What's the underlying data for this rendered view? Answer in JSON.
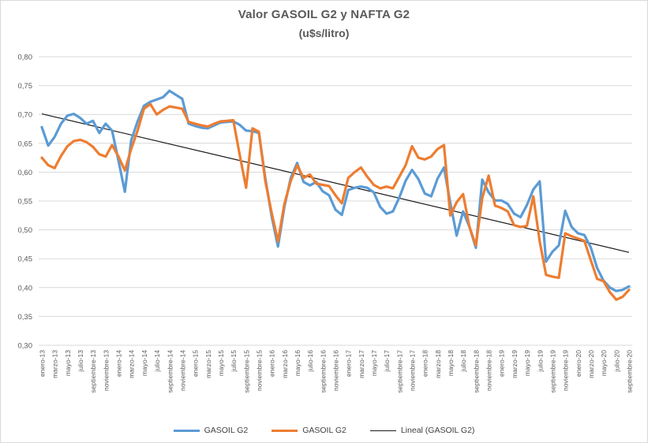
{
  "chart": {
    "title": "Valor GASOIL G2 y NAFTA G2",
    "subtitle": "(u$s/litro)"
  },
  "chart_data": {
    "type": "line",
    "title": "Valor GASOIL G2 y NAFTA G2",
    "subtitle": "(u$s/litro)",
    "x_resolution": "monthly",
    "x_first": "enero-13",
    "x_last": "septiembre-20",
    "points_per_series": 93,
    "ylim": [
      0.3,
      0.8
    ],
    "ytick_step": 0.05,
    "grid": "horizontal",
    "legend_position": "bottom",
    "y_tick_labels": [
      "0,80",
      "0,75",
      "0,70",
      "0,65",
      "0,60",
      "0,55",
      "0,50",
      "0,45",
      "0,40",
      "0,35",
      "0,30"
    ],
    "x_tick_labels": [
      "enero-13",
      "marzo-13",
      "mayo-13",
      "julio-13",
      "septiembre-13",
      "noviembre-13",
      "enero-14",
      "marzo-14",
      "mayo-14",
      "julio-14",
      "septiembre-14",
      "noviembre-14",
      "enero-15",
      "marzo-15",
      "mayo-15",
      "julio-15",
      "septiembre-15",
      "noviembre-15",
      "enero-16",
      "marzo-16",
      "mayo-16",
      "julio-16",
      "septiembre-16",
      "noviembre-16",
      "enero-17",
      "marzo-17",
      "mayo-17",
      "julio-17",
      "septiembre-17",
      "noviembre-17",
      "enero-18",
      "marzo-18",
      "mayo-18",
      "julio-18",
      "septiembre-18",
      "noviembre-18",
      "enero-19",
      "marzo-19",
      "mayo-19",
      "julio-19",
      "septiembre-19",
      "noviembre-19",
      "enero-20",
      "marzo-20",
      "mayo-20",
      "julio-20",
      "septiembre-20"
    ],
    "series": [
      {
        "name": "GASOIL G2",
        "color": "#5B9BD5",
        "values": [
          0.678,
          0.646,
          0.661,
          0.684,
          0.698,
          0.701,
          0.694,
          0.684,
          0.689,
          0.668,
          0.684,
          0.672,
          0.62,
          0.566,
          0.655,
          0.688,
          0.715,
          0.722,
          0.726,
          0.73,
          0.741,
          0.734,
          0.727,
          0.684,
          0.68,
          0.677,
          0.676,
          0.681,
          0.686,
          0.687,
          0.688,
          0.682,
          0.672,
          0.671,
          0.668,
          0.59,
          0.524,
          0.471,
          0.54,
          0.59,
          0.616,
          0.583,
          0.577,
          0.583,
          0.567,
          0.56,
          0.535,
          0.526,
          0.569,
          0.573,
          0.575,
          0.573,
          0.565,
          0.54,
          0.528,
          0.532,
          0.556,
          0.585,
          0.604,
          0.588,
          0.563,
          0.558,
          0.589,
          0.608,
          0.547,
          0.49,
          0.532,
          0.505,
          0.469,
          0.587,
          0.565,
          0.551,
          0.551,
          0.545,
          0.528,
          0.522,
          0.543,
          0.57,
          0.584,
          0.445,
          0.462,
          0.473,
          0.533,
          0.505,
          0.494,
          0.491,
          0.47,
          0.434,
          0.412,
          0.4,
          0.394,
          0.396,
          0.402
        ]
      },
      {
        "name": "GASOIL G2",
        "color": "#ED7D31",
        "values": [
          0.625,
          0.612,
          0.607,
          0.628,
          0.645,
          0.654,
          0.656,
          0.652,
          0.644,
          0.631,
          0.627,
          0.647,
          0.627,
          0.603,
          0.64,
          0.672,
          0.71,
          0.718,
          0.7,
          0.708,
          0.714,
          0.712,
          0.71,
          0.687,
          0.684,
          0.681,
          0.679,
          0.684,
          0.688,
          0.689,
          0.69,
          0.63,
          0.573,
          0.676,
          0.67,
          0.585,
          0.53,
          0.48,
          0.545,
          0.585,
          0.612,
          0.59,
          0.596,
          0.58,
          0.578,
          0.576,
          0.56,
          0.546,
          0.59,
          0.6,
          0.608,
          0.592,
          0.578,
          0.572,
          0.575,
          0.572,
          0.592,
          0.612,
          0.645,
          0.625,
          0.622,
          0.627,
          0.64,
          0.647,
          0.525,
          0.548,
          0.562,
          0.505,
          0.473,
          0.555,
          0.594,
          0.542,
          0.538,
          0.532,
          0.508,
          0.505,
          0.507,
          0.558,
          0.48,
          0.422,
          0.419,
          0.417,
          0.494,
          0.489,
          0.485,
          0.481,
          0.448,
          0.415,
          0.411,
          0.392,
          0.379,
          0.384,
          0.396
        ]
      },
      {
        "name": "Lineal (GASOIL G2)",
        "type": "linear_trend",
        "color": "#1a1a1a",
        "start_value": 0.701,
        "end_value": 0.461
      }
    ]
  },
  "legend": {
    "items": [
      {
        "label": "GASOIL G2",
        "color": "#5B9BD5",
        "style": "line-thick"
      },
      {
        "label": "GASOIL G2",
        "color": "#ED7D31",
        "style": "line-thick"
      },
      {
        "label": "Lineal (GASOIL G2)",
        "color": "#1a1a1a",
        "style": "line-thin"
      }
    ]
  }
}
